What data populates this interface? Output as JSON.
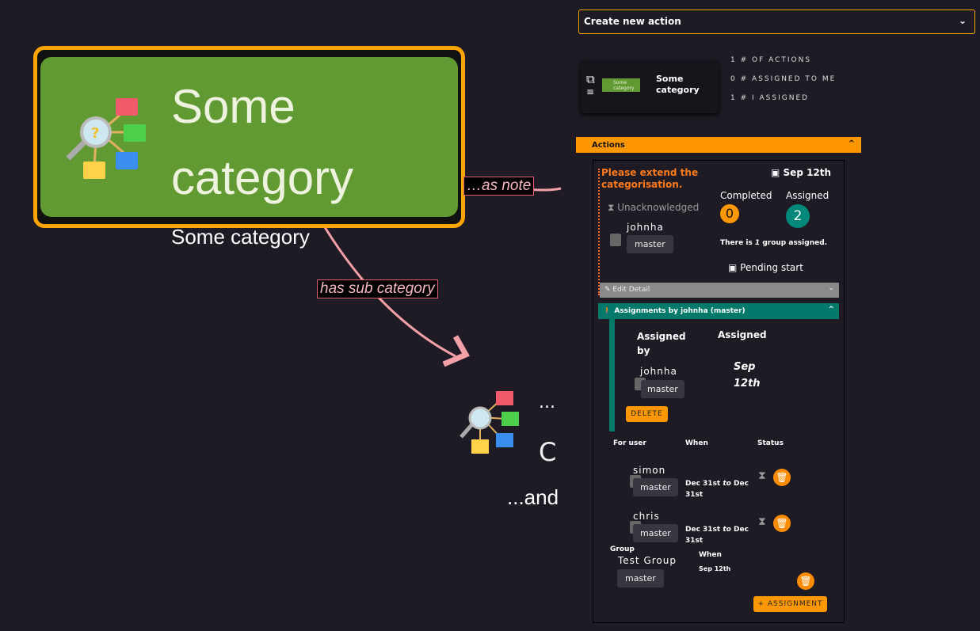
{
  "graph": {
    "main_node": {
      "title": "Some category",
      "label": "Some category"
    },
    "edges": {
      "note": "as note",
      "sub": "has sub category"
    },
    "sub_node": {
      "dots": "...",
      "partial": "C",
      "and": "...and"
    }
  },
  "toolbar": {
    "create_action": "Create new action"
  },
  "category_card": {
    "chip": "Some category",
    "title": "Some category"
  },
  "stats": [
    "1 # OF ACTIONS",
    "0 # ASSIGNED TO ME",
    "1 # I ASSIGNED"
  ],
  "actions_header": "Actions",
  "action": {
    "title": "Please extend the categorisation.",
    "date": "Sep 12th",
    "status": "Unacknowledged",
    "user": "johnha",
    "group": "master",
    "completed_label": "Completed",
    "completed": "0",
    "assigned_label": "Assigned",
    "assigned": "2",
    "groups_pre": "There is",
    "groups_n": "1",
    "groups_post": "group assigned.",
    "pending": "Pending start",
    "edit_detail": "Edit Detail",
    "assignments_header": "Assignments by johnha (master)"
  },
  "assignment": {
    "assigned_by_label": "Assigned by",
    "assigned_label": "Assigned",
    "user": "johnha",
    "group": "master",
    "date": "Sep 12th",
    "delete": "DELETE"
  },
  "table": {
    "headers": [
      "For user",
      "When",
      "Status"
    ],
    "rows": [
      {
        "user": "simon",
        "group": "master",
        "from": "Dec 31st",
        "to": "to",
        "until": "Dec 31st"
      },
      {
        "user": "chris",
        "group": "master",
        "from": "Dec 31st",
        "to": "to",
        "until": "Dec 31st"
      }
    ],
    "group": {
      "label": "Group",
      "name": "Test Group",
      "chip": "master",
      "when_label": "When",
      "when": "Sep 12th"
    },
    "add": "+ ASSIGNMENT"
  },
  "colors": {
    "accent": "#ff9800",
    "teal": "#00897b",
    "category": "#619a33",
    "bg": "#1f1b24"
  }
}
